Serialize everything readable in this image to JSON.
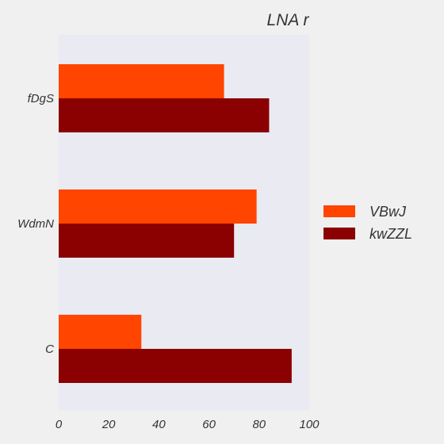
{
  "chart_data": {
    "type": "bar",
    "orientation": "horizontal",
    "title": "LNA r",
    "xlabel": "",
    "ylabel": "",
    "categories": [
      "fDgS",
      "WdmN",
      "C"
    ],
    "series": [
      {
        "name": "VBwJ",
        "values": [
          66,
          79,
          33
        ],
        "color": "#ff4500"
      },
      {
        "name": "kwZZL",
        "values": [
          84,
          70,
          93
        ],
        "color": "#8b0000"
      }
    ],
    "xlim": [
      0,
      100
    ],
    "xticks": [
      0,
      20,
      40,
      60,
      80,
      100
    ],
    "grid": false,
    "legend_position": "right",
    "plot_background": "#eaeaf2"
  }
}
